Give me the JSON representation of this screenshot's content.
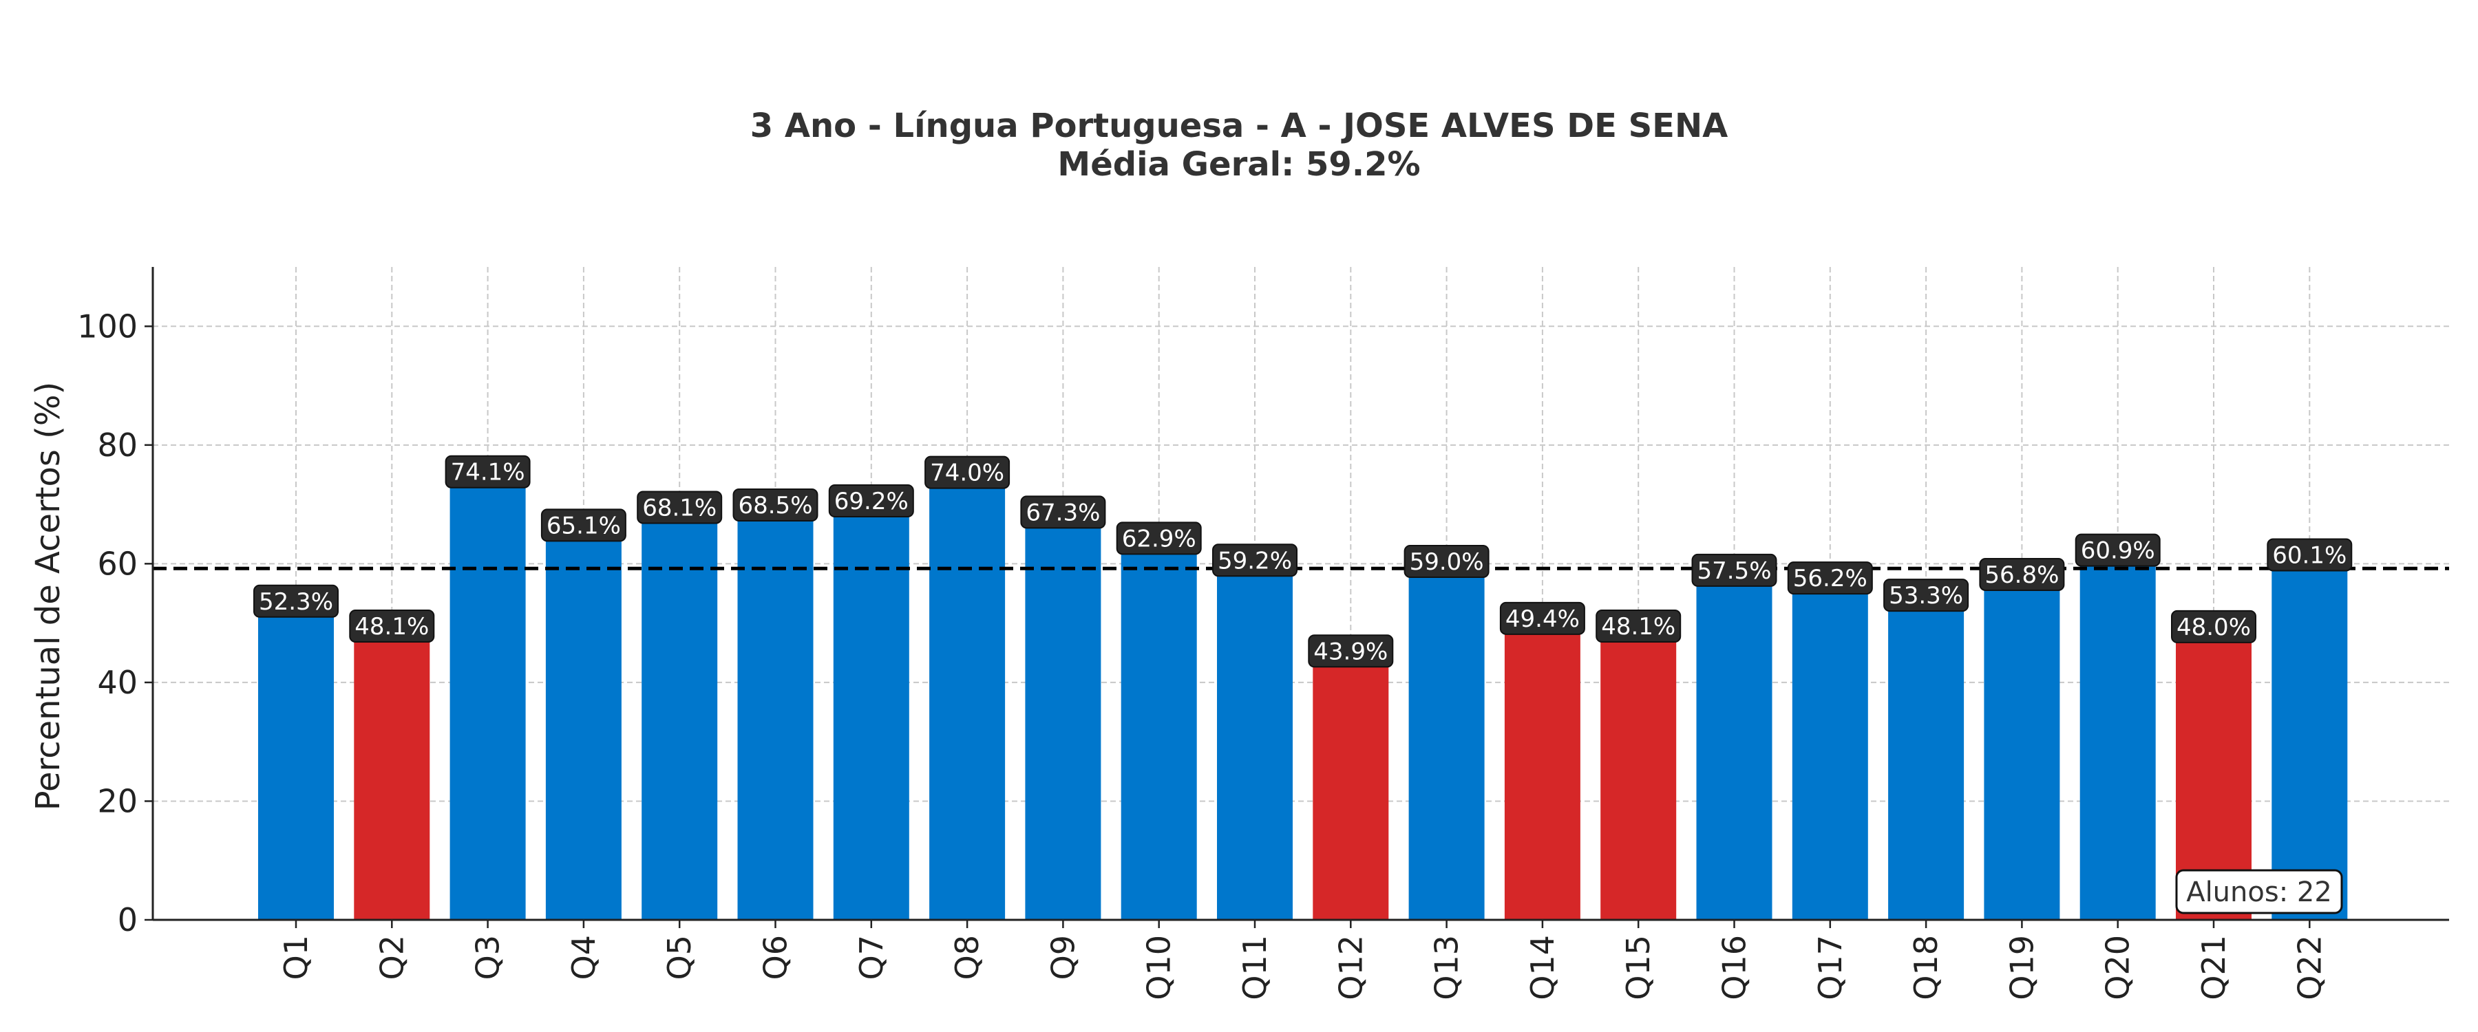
{
  "chart_data": {
    "type": "bar",
    "title": "3 Ano - Língua Portuguesa - A - JOSE ALVES DE SENA",
    "subtitle": "Média Geral: 59.2%",
    "ylabel": "Percentual de Acertos (%)",
    "xlabel": "",
    "ylim": [
      0,
      110
    ],
    "yticks": [
      0,
      20,
      40,
      60,
      80,
      100
    ],
    "grid": true,
    "categories": [
      "Q1",
      "Q2",
      "Q3",
      "Q4",
      "Q5",
      "Q6",
      "Q7",
      "Q8",
      "Q9",
      "Q10",
      "Q11",
      "Q12",
      "Q13",
      "Q14",
      "Q15",
      "Q16",
      "Q17",
      "Q18",
      "Q19",
      "Q20",
      "Q21",
      "Q22"
    ],
    "values": [
      52.3,
      48.1,
      74.1,
      65.1,
      68.1,
      68.5,
      69.2,
      74.0,
      67.3,
      62.9,
      59.2,
      43.9,
      59.0,
      49.4,
      48.1,
      57.5,
      56.2,
      53.3,
      56.8,
      60.9,
      48.0,
      60.1
    ],
    "data_labels": [
      "52.3%",
      "48.1%",
      "74.1%",
      "65.1%",
      "68.1%",
      "68.5%",
      "69.2%",
      "74.0%",
      "67.3%",
      "62.9%",
      "59.2%",
      "43.9%",
      "59.0%",
      "49.4%",
      "48.1%",
      "57.5%",
      "56.2%",
      "53.3%",
      "56.8%",
      "60.9%",
      "48.0%",
      "60.1%"
    ],
    "bar_colors": [
      "#0077cc",
      "#d62728",
      "#0077cc",
      "#0077cc",
      "#0077cc",
      "#0077cc",
      "#0077cc",
      "#0077cc",
      "#0077cc",
      "#0077cc",
      "#0077cc",
      "#d62728",
      "#0077cc",
      "#d62728",
      "#d62728",
      "#0077cc",
      "#0077cc",
      "#0077cc",
      "#0077cc",
      "#0077cc",
      "#d62728",
      "#0077cc"
    ],
    "mean_line": 59.2,
    "annotation": "Alunos: 22",
    "colors": {
      "above": "#0077cc",
      "below": "#d62728",
      "label_box": "#2b2b2b",
      "mean_line": "#000000"
    }
  }
}
